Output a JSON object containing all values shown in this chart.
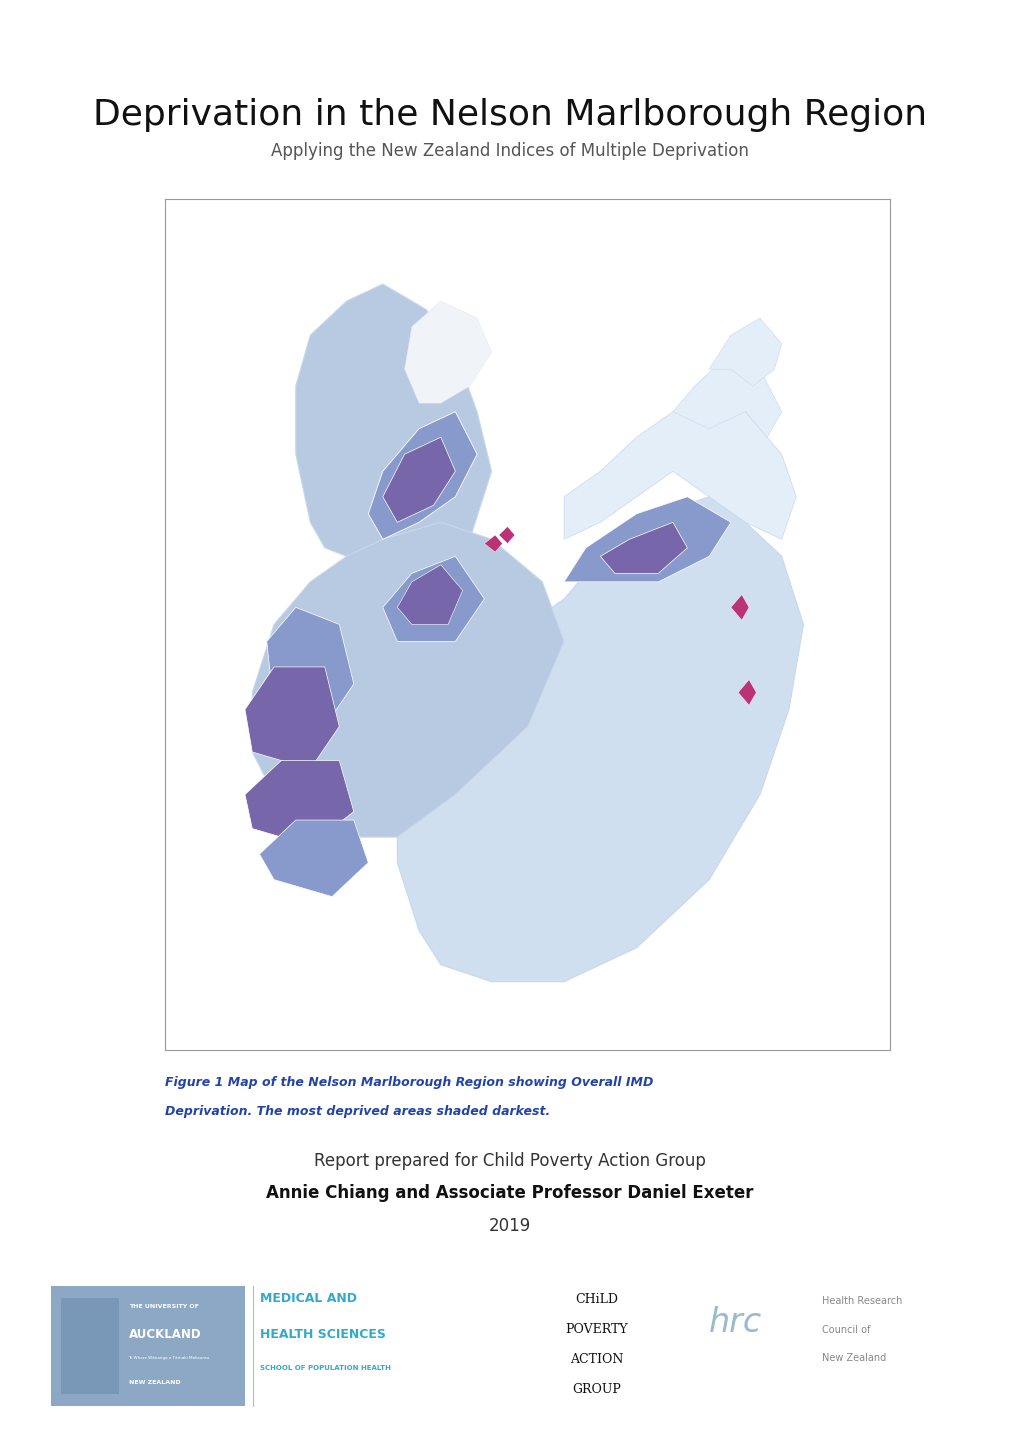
{
  "title": "Deprivation in the Nelson Marlborough Region",
  "subtitle": "Applying the New Zealand Indices of Multiple Deprivation",
  "figure_caption_line1": "Figure 1 Map of the Nelson Marlborough Region showing Overall IMD",
  "figure_caption_line2": "Deprivation. The most deprived areas shaded darkest.",
  "report_line": "Report prepared for Child Poverty Action Group",
  "authors": "Annie Chiang and Associate Professor Daniel Exeter",
  "year": "2019",
  "title_fontsize": 26,
  "subtitle_fontsize": 12,
  "caption_fontsize": 9,
  "report_line_fontsize": 12,
  "authors_fontsize": 12,
  "year_fontsize": 12,
  "background_color": "#ffffff",
  "title_color": "#111111",
  "subtitle_color": "#555555",
  "caption_color": "#2244aa",
  "light_blue": "#b8c9e2",
  "medium_blue": "#8899cc",
  "dark_purple": "#7766aa",
  "pink_purple": "#bb3377",
  "very_light_blue": "#d0dff0",
  "pale_blue": "#e4eef8"
}
